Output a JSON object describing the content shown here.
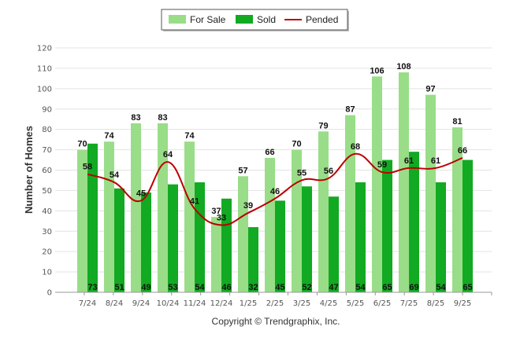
{
  "chart_data": {
    "type": "bar",
    "title": "",
    "xlabel": "",
    "ylabel": "Number of Homes",
    "ylim": [
      0,
      120
    ],
    "yticks": [
      0,
      10,
      20,
      30,
      40,
      50,
      60,
      70,
      80,
      90,
      100,
      110,
      120
    ],
    "grid": true,
    "legend_position": "top-center",
    "categories": [
      "7/24",
      "8/24",
      "9/24",
      "10/24",
      "11/24",
      "12/24",
      "1/25",
      "2/25",
      "3/25",
      "4/25",
      "5/25",
      "6/25",
      "7/25",
      "8/25",
      "9/25"
    ],
    "series": [
      {
        "name": "For Sale",
        "kind": "bar",
        "color": "#99dd88",
        "values": [
          70,
          74,
          83,
          83,
          74,
          37,
          57,
          66,
          70,
          79,
          87,
          106,
          108,
          97,
          81
        ]
      },
      {
        "name": "Sold",
        "kind": "bar",
        "color": "#11aa22",
        "values": [
          73,
          51,
          49,
          53,
          54,
          46,
          32,
          45,
          52,
          47,
          54,
          65,
          69,
          54,
          65
        ]
      },
      {
        "name": "Pended",
        "kind": "line",
        "color": "#bb0000",
        "values": [
          58,
          54,
          45,
          64,
          41,
          33,
          39,
          46,
          55,
          56,
          68,
          59,
          61,
          61,
          66
        ]
      }
    ],
    "footer": "Copyright © Trendgraphix, Inc."
  }
}
